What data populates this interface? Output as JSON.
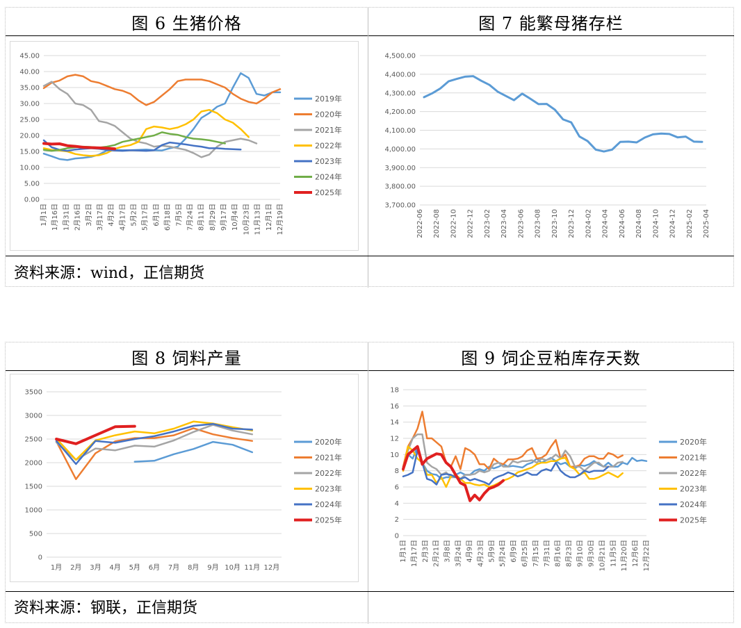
{
  "top_row": {
    "left_title": "图 6  生猪价格",
    "right_title": "图 7  能繁母猪存栏",
    "source": "资料来源：wind，正信期货"
  },
  "bottom_row": {
    "left_title": "图 8  饲料产量",
    "right_title": "图 9  饲企豆粕库存天数",
    "source": "资料来源：钢联，正信期货"
  },
  "chart_data": [
    {
      "id": "pig_price",
      "type": "line",
      "y_ticks": [
        "45.00",
        "40.00",
        "35.00",
        "30.00",
        "25.00",
        "20.00",
        "15.00",
        "10.00",
        "5.00",
        "0.00"
      ],
      "ylim": [
        0,
        45
      ],
      "x_tick_labels": [
        "1月1日",
        "1月16日",
        "1月31日",
        "2月16日",
        "3月2日",
        "3月17日",
        "4月2日",
        "4月17日",
        "5月2日",
        "5月17日",
        "6月1日",
        "6月18日",
        "7月5日",
        "7月24日",
        "8月11日",
        "8月29日",
        "9月17日",
        "10月4日",
        "10月23日",
        "11月13日",
        "12月1日",
        "12月19日"
      ],
      "legend_position": "right",
      "series": [
        {
          "name": "2019年",
          "color": "#5b9bd5",
          "values": [
            14.3,
            13.5,
            12.6,
            12.3,
            12.8,
            13,
            13.3,
            14,
            15.3,
            15.5,
            15.4,
            15.4,
            15.5,
            15.6,
            15.4,
            15.3,
            16,
            16.5,
            19,
            22,
            25.5,
            27,
            29,
            30,
            35,
            39.5,
            38,
            33,
            32.5,
            33.5,
            33.5
          ]
        },
        {
          "name": "2020年",
          "color": "#ed7d31",
          "values": [
            34.8,
            36.5,
            37.2,
            38.5,
            39,
            38.5,
            37,
            36.5,
            35.5,
            34.5,
            34,
            33,
            31,
            29.5,
            30.5,
            32.5,
            34.5,
            37,
            37.5,
            37.5,
            37.5,
            37,
            36,
            35,
            33,
            31.5,
            30.5,
            30,
            31.5,
            33.5,
            34.5
          ]
        },
        {
          "name": "2021年",
          "color": "#a5a5a5",
          "values": [
            35.5,
            36.8,
            34.5,
            33,
            30,
            29.5,
            28,
            24.5,
            24,
            23,
            21,
            19,
            18,
            17.5,
            16.5,
            16.8,
            16.5,
            16,
            15.5,
            14.5,
            13.2,
            14,
            16.5,
            18,
            18.5,
            19,
            18.5,
            17.5
          ]
        },
        {
          "name": "2022年",
          "color": "#ffc000",
          "values": [
            16,
            15.5,
            15.3,
            15,
            14.2,
            13.8,
            13.6,
            13.8,
            14.5,
            15.8,
            16.5,
            17,
            18,
            22,
            22.8,
            22.5,
            22,
            22.5,
            23.5,
            25,
            27.5,
            28,
            27,
            25,
            24,
            22,
            19.5
          ]
        },
        {
          "name": "2023年",
          "color": "#4472c4",
          "values": [
            18.5,
            16.3,
            15.5,
            15.2,
            15.6,
            15.8,
            16,
            15.8,
            15.5,
            15.3,
            15.2,
            15.4,
            15.3,
            15.2,
            15.4,
            17,
            17.8,
            17.5,
            17.2,
            16.8,
            16.5,
            16,
            16,
            15.8,
            15.7,
            15.6
          ]
        },
        {
          "name": "2024年",
          "color": "#70ad47",
          "values": [
            15.5,
            15.2,
            15.5,
            16,
            16.3,
            16.5,
            16.4,
            16.2,
            16.5,
            17,
            18,
            18.5,
            19,
            19.5,
            20,
            21,
            20.5,
            20.2,
            19.5,
            19,
            18.8,
            18.5,
            18,
            17.5
          ]
        },
        {
          "name": "2025年",
          "color": "#e02020",
          "values": [
            17.5,
            17.3,
            17.4,
            16.8,
            16.6,
            16.3,
            16.2,
            16.1,
            16.0,
            15.8
          ]
        }
      ]
    },
    {
      "id": "sow_inventory",
      "type": "line",
      "y_ticks": [
        "4,500.00",
        "4,400.00",
        "4,300.00",
        "4,200.00",
        "4,100.00",
        "4,000.00",
        "3,900.00",
        "3,800.00",
        "3,700.00"
      ],
      "ylim": [
        3700,
        4500
      ],
      "x_tick_labels": [
        "2022-06",
        "2022-08",
        "2022-10",
        "2022-12",
        "2023-02",
        "2023-04",
        "2023-06",
        "2023-08",
        "2023-10",
        "2023-12",
        "2024-02",
        "2024-04",
        "2024-06",
        "2024-08",
        "2024-10",
        "2024-12",
        "2025-02",
        "2025-04"
      ],
      "series": [
        {
          "name": "",
          "color": "#5b9bd5",
          "values": [
            4277,
            4298,
            4324,
            4362,
            4375,
            4387,
            4390,
            4365,
            4343,
            4307,
            4284,
            4261,
            4296,
            4269,
            4240,
            4241,
            4210,
            4158,
            4142,
            4067,
            4042,
            3996,
            3986,
            3996,
            4038,
            4039,
            4035,
            4061,
            4078,
            4082,
            4080,
            4062,
            4066,
            4039,
            4038
          ]
        }
      ]
    },
    {
      "id": "feed_output",
      "type": "line",
      "y_ticks": [
        "3500",
        "3000",
        "2500",
        "2000",
        "1500",
        "1000",
        "500",
        "0"
      ],
      "ylim": [
        0,
        3500
      ],
      "x_tick_labels": [
        "1月",
        "2月",
        "3月",
        "4月",
        "5月",
        "6月",
        "7月",
        "8月",
        "9月",
        "10月",
        "11月",
        "12月"
      ],
      "legend_position": "right",
      "series": [
        {
          "name": "2020年",
          "color": "#5b9bd5",
          "start": 4,
          "values": [
            2020,
            2040,
            2180,
            2290,
            2440,
            2380,
            2220
          ]
        },
        {
          "name": "2021年",
          "color": "#ed7d31",
          "start": 0,
          "values": [
            2450,
            1650,
            2200,
            2450,
            2520,
            2520,
            2580,
            2730,
            2600,
            2520,
            2460
          ]
        },
        {
          "name": "2022年",
          "color": "#a5a5a5",
          "start": 0,
          "values": [
            2430,
            2060,
            2300,
            2260,
            2360,
            2340,
            2470,
            2650,
            2800,
            2680,
            2600
          ]
        },
        {
          "name": "2023年",
          "color": "#ffc000",
          "start": 0,
          "values": [
            2510,
            2060,
            2470,
            2580,
            2660,
            2620,
            2720,
            2870,
            2830,
            2750,
            2680
          ]
        },
        {
          "name": "2024年",
          "color": "#4472c4",
          "start": 0,
          "values": [
            2460,
            1970,
            2460,
            2420,
            2500,
            2560,
            2660,
            2780,
            2820,
            2720,
            2700
          ]
        },
        {
          "name": "2025年",
          "color": "#e02020",
          "start": 0,
          "values": [
            2500,
            2400,
            2580,
            2760,
            2770
          ]
        }
      ]
    },
    {
      "id": "soymeal_days",
      "type": "line",
      "y_ticks": [
        "18",
        "16",
        "14",
        "12",
        "10",
        "8",
        "6",
        "4",
        "2",
        "0"
      ],
      "ylim": [
        0,
        18
      ],
      "x_tick_labels": [
        "1月1日",
        "1月17日",
        "2月3日",
        "2月21日",
        "3月8日",
        "3月24日",
        "4月9日",
        "4月23日",
        "5月9日",
        "5月24日",
        "6月9日",
        "6月25日",
        "7月15日",
        "7月31日",
        "8月16日",
        "8月23日",
        "9月10日",
        "9月30日",
        "10月21日",
        "11月5日",
        "11月20日",
        "12月6日",
        "12月22日"
      ],
      "legend_position": "right",
      "series": [
        {
          "name": "2020年",
          "color": "#5b9bd5",
          "values": [
            8.5,
            10,
            9.5,
            11,
            9,
            8,
            7.6,
            7.5,
            7,
            7.2,
            7.2,
            7.5,
            7.8,
            7.5,
            7.5,
            8,
            8.2,
            8,
            8.5,
            8.3,
            8.5,
            8.8,
            8.5,
            8.6,
            8.5,
            8.4,
            8.8,
            9,
            9.5,
            9,
            9.3,
            9.6,
            9.2,
            8.8,
            9,
            8.5,
            8.3,
            8.7,
            8.6,
            8.8,
            9.2,
            8.8,
            8.5,
            9,
            8.5,
            8.5,
            9,
            8.8,
            9.6,
            9.2,
            9.3,
            9.2
          ]
        },
        {
          "name": "2021年",
          "color": "#ed7d31",
          "values": [
            8.5,
            11,
            12,
            13.2,
            15.3,
            12,
            12,
            11.5,
            11,
            9,
            8.5,
            9.8,
            8.2,
            10.8,
            10.5,
            10,
            8.8,
            8.8,
            8.2,
            9.5,
            9,
            8.8,
            9.4,
            9.4,
            9.5,
            9.8,
            10.5,
            10.8,
            9.5,
            9.6,
            10,
            11,
            11.8,
            9.5,
            10,
            8.5,
            8.5,
            8.7,
            9.5,
            9.8,
            9.8,
            9.5,
            9.5,
            10.2,
            10,
            9.6,
            9.9
          ]
        },
        {
          "name": "2022年",
          "color": "#a5a5a5",
          "values": [
            8,
            10.5,
            12,
            12.5,
            12.5,
            9,
            8.5,
            8.2,
            7.5,
            7.8,
            7.2,
            7.2,
            7,
            7.5,
            7.5,
            7.6,
            8,
            7.8,
            8,
            8.8,
            9,
            8.5,
            8.5,
            9.2,
            9,
            9.2,
            9.2,
            9.3,
            9,
            9.5,
            9.3,
            9.5,
            10,
            9.5,
            10.5,
            9.8,
            8.5,
            8.5,
            8,
            8.5,
            9,
            9,
            8.5,
            8.5,
            8.5,
            9,
            9.1
          ]
        },
        {
          "name": "2023年",
          "color": "#ffc000",
          "values": [
            8,
            11,
            10.5,
            9.5,
            9,
            7.5,
            7.5,
            6.5,
            7.2,
            6,
            7.3,
            7.5,
            7,
            6.5,
            6.5,
            6.3,
            6.2,
            6.3,
            6,
            6.2,
            6.5,
            6.8,
            7,
            7.3,
            7.8,
            8,
            8.2,
            8.4,
            8.8,
            9,
            9,
            9.2,
            9.2,
            9.5,
            9.6,
            8.5,
            8.2,
            7.5,
            7.8,
            7,
            7,
            7.2,
            7.5,
            7.8,
            7.5,
            7.2,
            7.7
          ]
        },
        {
          "name": "2024年",
          "color": "#4472c4",
          "values": [
            7.3,
            7.5,
            7.8,
            10.5,
            9,
            7,
            6.8,
            6.3,
            7.5,
            7.6,
            7.5,
            7.2,
            7,
            7.2,
            6.8,
            7,
            6.8,
            6.6,
            6.3,
            7,
            7.3,
            7.5,
            7.8,
            7.6,
            7.3,
            7.5,
            7.8,
            7.5,
            7.5,
            8,
            8.2,
            8,
            9,
            8,
            7.5,
            7.2,
            7.2,
            7.5,
            8,
            7.8,
            8,
            8,
            8,
            8.5
          ]
        },
        {
          "name": "2025年",
          "color": "#e02020",
          "values": [
            8.2,
            10,
            10.5,
            11,
            8.8,
            9.5,
            9.8,
            10.1,
            10,
            9,
            8.5,
            7.5,
            6.5,
            6.2,
            4.3,
            5,
            4.4,
            5.2,
            5.8,
            6,
            6.3,
            6.8
          ]
        }
      ]
    }
  ]
}
